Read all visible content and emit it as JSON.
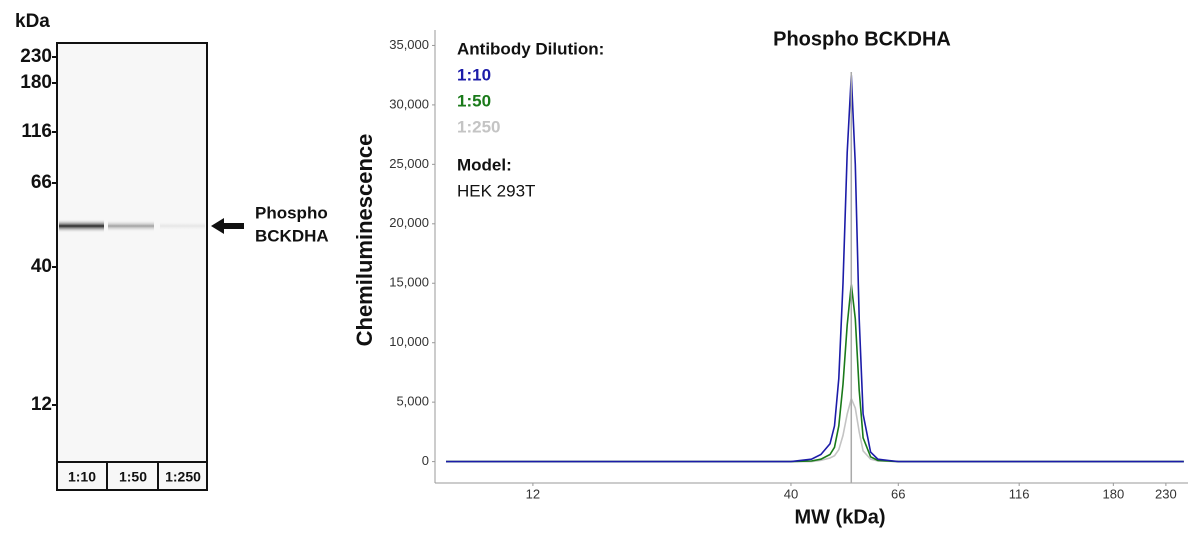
{
  "blot": {
    "unit": "kDa",
    "markers": [
      "230",
      "180",
      "116",
      "66",
      "40",
      "12"
    ],
    "lanes": [
      "1:10",
      "1:50",
      "1:250"
    ],
    "band_label": [
      "Phospho",
      "BCKDHA"
    ]
  },
  "chart_data": {
    "type": "line",
    "title": "Phospho BCKDHA",
    "x_label": "MW (kDa)",
    "y_label": "Chemiluminescence",
    "legend_title": "Antibody Dilution:",
    "model_label": "Model:",
    "model": "HEK 293T",
    "x": [
      8,
      10,
      15,
      20,
      30,
      40,
      44,
      46,
      48,
      49,
      50,
      51,
      52,
      53,
      54,
      55,
      56,
      58,
      60,
      66,
      80,
      100,
      150,
      200,
      250
    ],
    "series": [
      {
        "name": "1:10",
        "color": "#1c1ca8",
        "values": [
          0,
          0,
          0,
          0,
          0,
          0,
          200,
          600,
          1500,
          3000,
          7000,
          15000,
          26000,
          32500,
          25000,
          12000,
          4000,
          800,
          200,
          0,
          0,
          0,
          0,
          0,
          0
        ]
      },
      {
        "name": "1:50",
        "color": "#1a7a1a",
        "values": [
          0,
          0,
          0,
          0,
          0,
          0,
          50,
          200,
          600,
          1200,
          3000,
          6500,
          11500,
          14900,
          12000,
          6000,
          2000,
          400,
          100,
          0,
          0,
          0,
          0,
          0,
          0
        ]
      },
      {
        "name": "1:250",
        "color": "#c4c4c4",
        "values": [
          0,
          0,
          0,
          0,
          0,
          0,
          0,
          100,
          300,
          500,
          1000,
          2200,
          4000,
          5300,
          4500,
          2500,
          900,
          200,
          50,
          0,
          0,
          0,
          0,
          0,
          0
        ]
      }
    ],
    "vline": 53,
    "xscale": "log",
    "xlim": [
      7.6,
      255
    ],
    "xticks": [
      12,
      40,
      66,
      116,
      180,
      230
    ],
    "ylim": [
      -1800,
      36300
    ],
    "yticks": [
      0,
      {
        "value": 5000,
        "label": "5,000"
      },
      {
        "value": 10000,
        "label": "10,000"
      },
      {
        "value": 15000,
        "label": "15,000"
      },
      {
        "value": 20000,
        "label": "20,000"
      },
      {
        "value": 25000,
        "label": "25,000"
      },
      {
        "value": 30000,
        "label": "30,000"
      },
      {
        "value": 35000,
        "label": "35,000"
      }
    ]
  }
}
